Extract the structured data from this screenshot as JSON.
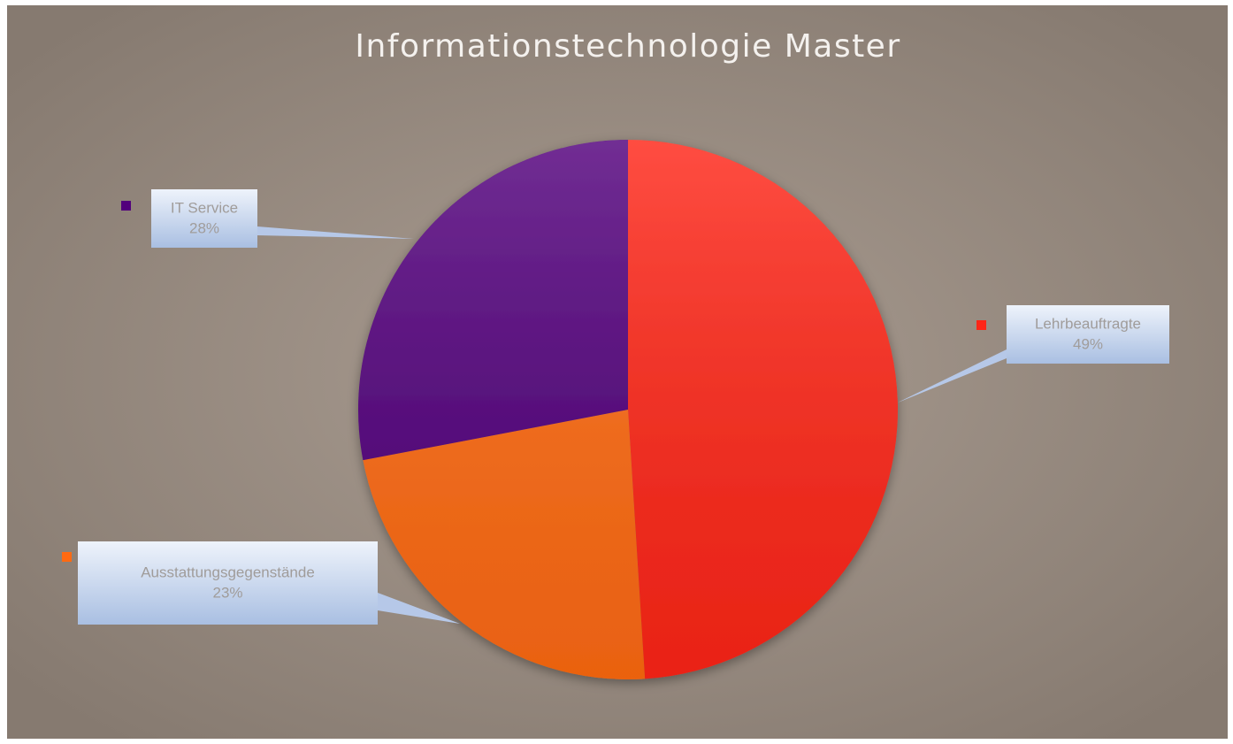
{
  "chart_data": {
    "type": "pie",
    "title": "Informationstechnologie Master",
    "categories": [
      "Lehrbeauftragte",
      "Ausstattungsgegenstände",
      "IT Service"
    ],
    "values": [
      49,
      23,
      28
    ],
    "value_labels": [
      "49%",
      "23%",
      "28%"
    ],
    "colors": [
      "#ff2618",
      "#ff6a12",
      "#52007c"
    ]
  }
}
